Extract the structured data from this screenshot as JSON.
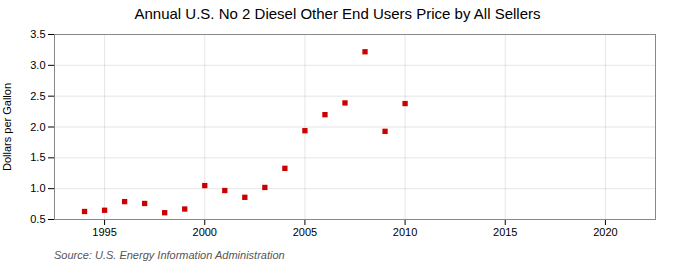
{
  "chart_data": {
    "type": "scatter",
    "title": "Annual U.S. No 2 Diesel Other End Users Price by All Sellers",
    "ylabel": "Dollars per Gallon",
    "source": "Source: U.S. Energy Information Administration",
    "x": [
      1994,
      1995,
      1996,
      1997,
      1998,
      1999,
      2000,
      2001,
      2002,
      2003,
      2004,
      2005,
      2006,
      2007,
      2008,
      2009,
      2010
    ],
    "values": [
      0.63,
      0.65,
      0.79,
      0.76,
      0.61,
      0.67,
      1.05,
      0.97,
      0.86,
      1.02,
      1.33,
      1.94,
      2.2,
      2.39,
      3.22,
      1.93,
      2.38
    ],
    "color": "#CC0000",
    "marker": "square",
    "xlim": [
      1992.5,
      2022.5
    ],
    "ylim": [
      0.5,
      3.5
    ],
    "xticks": [
      1995,
      2000,
      2005,
      2010,
      2015,
      2020
    ],
    "yticks": [
      0.5,
      {
        "value": 1,
        "label": "1.0"
      },
      1.5,
      {
        "value": 2,
        "label": "2.0"
      },
      2.5,
      {
        "value": 3,
        "label": "3.0"
      },
      3.5
    ],
    "grid": true
  }
}
